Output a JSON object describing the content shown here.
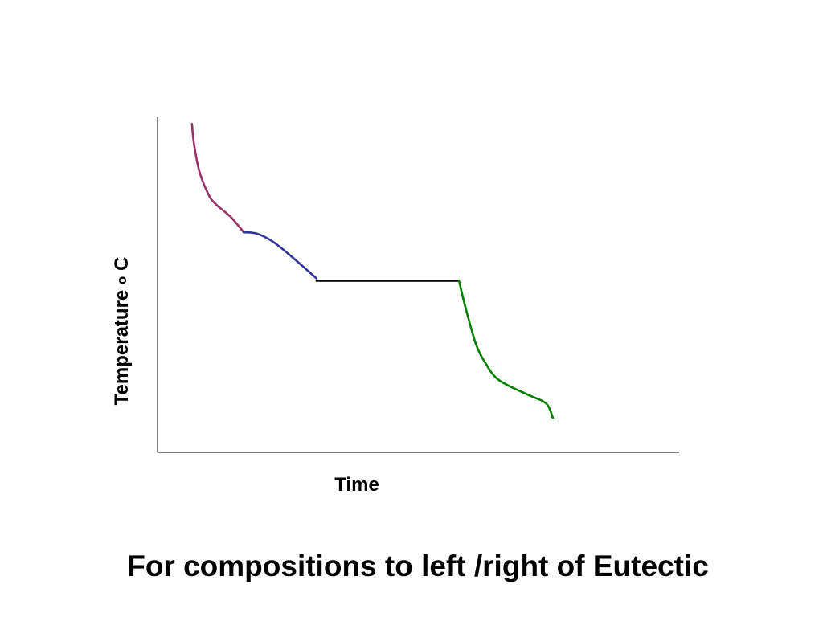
{
  "chart_data": {
    "type": "line",
    "title": "",
    "xlabel": "Time",
    "ylabel": "Temperature",
    "ylabel_superscript": "o",
    "ylabel_unit": "C",
    "grid": false,
    "legend": "none",
    "xlim": [
      0,
      100
    ],
    "ylim": [
      0,
      100
    ],
    "series": [
      {
        "color": "#993366",
        "points": [
          [
            6.6,
            98
          ],
          [
            7,
            92
          ],
          [
            8,
            84
          ],
          [
            9.6,
            77.5
          ],
          [
            11,
            74.3
          ],
          [
            14,
            70.3
          ],
          [
            16.5,
            65.7
          ]
        ]
      },
      {
        "color": "#333399",
        "points": [
          [
            16.5,
            65.7
          ],
          [
            19,
            65.3
          ],
          [
            22,
            63
          ],
          [
            25.5,
            58.7
          ],
          [
            30.5,
            51.9
          ]
        ]
      },
      {
        "color": "#000000",
        "points": [
          [
            30.5,
            51.2
          ],
          [
            57.8,
            51.2
          ]
        ]
      },
      {
        "color": "#008000",
        "points": [
          [
            57.8,
            51.2
          ],
          [
            59,
            43.5
          ],
          [
            61,
            32.5
          ],
          [
            63,
            26.3
          ],
          [
            65.5,
            21.5
          ],
          [
            71,
            17.2
          ],
          [
            74.5,
            14.6
          ],
          [
            75.8,
            10.3
          ]
        ]
      }
    ]
  },
  "caption": "For compositions to left /right of Eutectic"
}
